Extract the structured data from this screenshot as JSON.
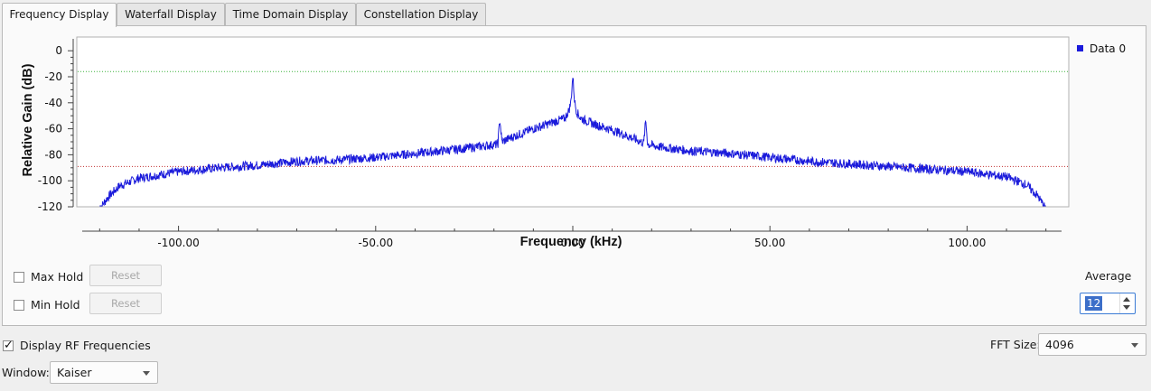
{
  "tabs": [
    {
      "label": "Frequency Display",
      "active": true
    },
    {
      "label": "Waterfall Display",
      "active": false
    },
    {
      "label": "Time Domain Display",
      "active": false
    },
    {
      "label": "Constellation Display",
      "active": false
    }
  ],
  "chart_data": {
    "type": "line",
    "xlabel": "Frequency (kHz)",
    "ylabel": "Relative Gain (dB)",
    "xlim": [
      -125,
      125
    ],
    "ylim": [
      -120,
      5
    ],
    "x_ticks": [
      -100,
      -50,
      0,
      50,
      100
    ],
    "x_tick_labels": [
      "-100.00",
      "-50.00",
      "0.00",
      "50.00",
      "100.00"
    ],
    "y_ticks": [
      0,
      -20,
      -40,
      -60,
      -80,
      -100,
      -120
    ],
    "y_tick_labels": [
      "0",
      "-20",
      "-40",
      "-60",
      "-80",
      "-100",
      "-120"
    ],
    "series": [
      {
        "name": "Data 0",
        "color": "#1a1adb",
        "x": [
          -120,
          -118,
          -115,
          -110,
          -100,
          -90,
          -80,
          -70,
          -60,
          -50,
          -40,
          -30,
          -22,
          -19,
          -18.5,
          -18,
          -15,
          -10,
          -5,
          -2,
          -1,
          -0.5,
          0,
          0.5,
          1,
          2,
          5,
          10,
          15,
          18,
          18.5,
          19,
          22,
          30,
          40,
          50,
          60,
          70,
          80,
          90,
          100,
          110,
          115,
          118,
          120
        ],
        "y": [
          -122,
          -113,
          -104,
          -98,
          -93,
          -90,
          -88,
          -85,
          -84,
          -82,
          -79,
          -76,
          -73,
          -72,
          -52,
          -70,
          -66,
          -60,
          -55,
          -52,
          -46,
          -40,
          -20,
          -40,
          -47,
          -52,
          -56,
          -61,
          -67,
          -71,
          -53,
          -72,
          -74,
          -77,
          -79,
          -82,
          -85,
          -87,
          -89,
          -91,
          -93,
          -97,
          -103,
          -112,
          -122
        ]
      }
    ],
    "reference_lines": [
      {
        "y": -16,
        "color": "#3cb43c",
        "style": "dotted"
      },
      {
        "y": -89,
        "color": "#c03030",
        "style": "dotted"
      }
    ],
    "grid": false,
    "legend": "top-right"
  },
  "controls": {
    "max_hold_label": "Max Hold",
    "max_hold_checked": false,
    "min_hold_label": "Min Hold",
    "min_hold_checked": false,
    "reset_label": "Reset",
    "average_label": "Average",
    "average_value": "12"
  },
  "footer": {
    "display_rf_label": "Display RF Frequencies",
    "display_rf_checked": true,
    "window_label": "Window:",
    "window_value": "Kaiser",
    "fft_size_label": "FFT Size:",
    "fft_size_value": "4096"
  }
}
